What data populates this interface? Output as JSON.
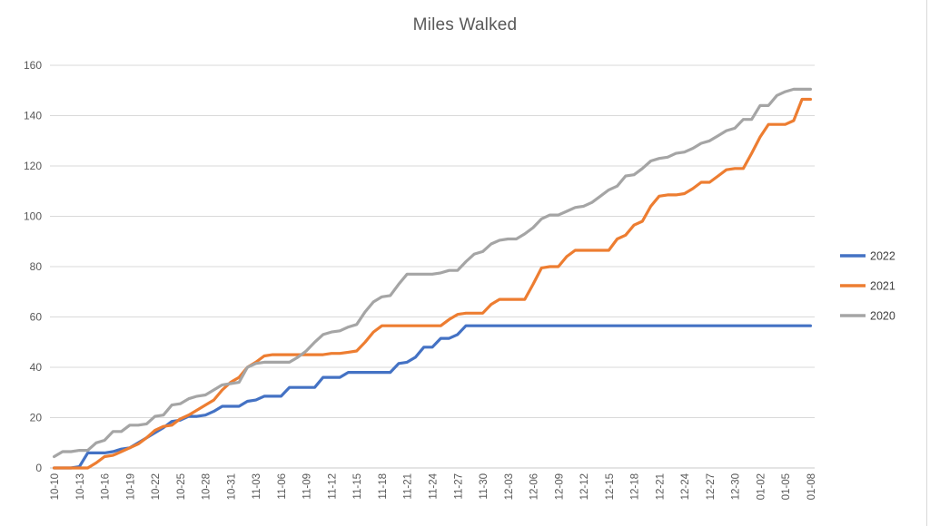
{
  "title": "Miles Walked",
  "colors": {
    "series_2022": "#4472C4",
    "series_2021": "#ED7D31",
    "series_2020": "#A5A5A5",
    "gridline": "#D9D9D9",
    "axis_line": "#C8C8C8",
    "tick_text": "#595959",
    "legend_text": "#404040",
    "frame_border": "#D9D9D9",
    "title_text": "#595959"
  },
  "chart_data": {
    "type": "line",
    "title": "Miles Walked",
    "xlabel": "",
    "ylabel": "",
    "ylim": [
      0,
      160
    ],
    "y_ticks": [
      0,
      20,
      40,
      60,
      80,
      100,
      120,
      140,
      160
    ],
    "grid": "horizontal",
    "legend_position": "right",
    "x_tick_labels": [
      "10-10",
      "10-13",
      "10-16",
      "10-19",
      "10-22",
      "10-25",
      "10-28",
      "10-31",
      "11-03",
      "11-06",
      "11-09",
      "11-12",
      "11-15",
      "11-18",
      "11-21",
      "11-24",
      "11-27",
      "11-30",
      "12-03",
      "12-06",
      "12-09",
      "12-12",
      "12-15",
      "12-18",
      "12-21",
      "12-24",
      "12-27",
      "12-30",
      "01-02",
      "01-05",
      "01-08"
    ],
    "x_daily_dates": [
      "10-10",
      "10-11",
      "10-12",
      "10-13",
      "10-14",
      "10-15",
      "10-16",
      "10-17",
      "10-18",
      "10-19",
      "10-20",
      "10-21",
      "10-22",
      "10-23",
      "10-24",
      "10-25",
      "10-26",
      "10-27",
      "10-28",
      "10-29",
      "10-30",
      "10-31",
      "11-01",
      "11-02",
      "11-03",
      "11-04",
      "11-05",
      "11-06",
      "11-07",
      "11-08",
      "11-09",
      "11-10",
      "11-11",
      "11-12",
      "11-13",
      "11-14",
      "11-15",
      "11-16",
      "11-17",
      "11-18",
      "11-19",
      "11-20",
      "11-21",
      "11-22",
      "11-23",
      "11-24",
      "11-25",
      "11-26",
      "11-27",
      "11-28",
      "11-29",
      "11-30",
      "12-01",
      "12-02",
      "12-03",
      "12-04",
      "12-05",
      "12-06",
      "12-07",
      "12-08",
      "12-09",
      "12-10",
      "12-11",
      "12-12",
      "12-13",
      "12-14",
      "12-15",
      "12-16",
      "12-17",
      "12-18",
      "12-19",
      "12-20",
      "12-21",
      "12-22",
      "12-23",
      "12-24",
      "12-25",
      "12-26",
      "12-27",
      "12-28",
      "12-29",
      "12-30",
      "12-31",
      "01-01",
      "01-02",
      "01-03",
      "01-04",
      "01-05",
      "01-06",
      "01-07",
      "01-08"
    ],
    "values_note": "cumulative miles, estimated from pixels",
    "series": [
      {
        "name": "2022",
        "color": "#4472C4",
        "values": [
          0,
          0,
          0,
          0.5,
          6,
          6,
          6,
          6.5,
          7.5,
          8,
          10,
          12,
          14,
          16,
          18.5,
          19,
          20.5,
          20.5,
          21,
          22.5,
          24.5,
          24.5,
          24.5,
          26.5,
          27,
          28.5,
          28.5,
          28.5,
          32,
          32,
          32,
          32,
          36,
          36,
          36,
          38,
          38,
          38,
          38,
          38,
          38,
          41.5,
          42,
          44,
          48,
          48,
          51.5,
          51.5,
          53,
          56.5,
          56.5,
          56.5,
          56.5,
          56.5,
          56.5,
          56.5,
          56.5,
          56.5,
          56.5,
          56.5,
          56.5,
          56.5,
          56.5,
          56.5,
          56.5,
          56.5,
          56.5,
          56.5,
          56.5,
          56.5,
          56.5,
          56.5,
          56.5,
          56.5,
          56.5,
          56.5,
          56.5,
          56.5,
          56.5,
          56.5,
          56.5,
          56.5,
          56.5,
          56.5,
          56.5,
          56.5,
          56.5,
          56.5,
          56.5,
          56.5,
          56.5
        ]
      },
      {
        "name": "2021",
        "color": "#ED7D31",
        "values": [
          0,
          0,
          0,
          0,
          0,
          2,
          4.5,
          5,
          6.5,
          8,
          9.5,
          12,
          15,
          16.5,
          17,
          19.5,
          21,
          23,
          25,
          27,
          31,
          34,
          36,
          40,
          42,
          44.5,
          45,
          45,
          45,
          45,
          45,
          45,
          45,
          45.5,
          45.5,
          46,
          46.5,
          50,
          54,
          56.5,
          56.5,
          56.5,
          56.5,
          56.5,
          56.5,
          56.5,
          56.5,
          59,
          61,
          61.5,
          61.5,
          61.5,
          65,
          67,
          67,
          67,
          67,
          73,
          79.5,
          80,
          80,
          84,
          86.5,
          86.5,
          86.5,
          86.5,
          86.5,
          91,
          92.5,
          96.5,
          98,
          104,
          108,
          108.5,
          108.5,
          109,
          111,
          113.5,
          113.5,
          116,
          118.5,
          119,
          119,
          125,
          131.5,
          136.5,
          136.5,
          136.5,
          138,
          146.5,
          146.5
        ]
      },
      {
        "name": "2020",
        "color": "#A5A5A5",
        "values": [
          4.5,
          6.5,
          6.5,
          7,
          7,
          10,
          11,
          14.5,
          14.5,
          17,
          17,
          17.5,
          20.5,
          21,
          25,
          25.5,
          27.5,
          28.5,
          29,
          31,
          33,
          33.5,
          34,
          40,
          41.5,
          42,
          42,
          42,
          42,
          44,
          46.5,
          50,
          53,
          54,
          54.5,
          56,
          57,
          62,
          66,
          68,
          68.5,
          73,
          77,
          77,
          77,
          77,
          77.5,
          78.5,
          78.5,
          82,
          85,
          86,
          89,
          90.5,
          91,
          91,
          93,
          95.5,
          99,
          100.5,
          100.5,
          102,
          103.5,
          104,
          105.5,
          108,
          110.5,
          112,
          116,
          116.5,
          119,
          122,
          123,
          123.5,
          125,
          125.5,
          127,
          129,
          130,
          132,
          134,
          135,
          138.5,
          138.5,
          144,
          144,
          148,
          149.5,
          150.5,
          150.5,
          150.5
        ]
      }
    ]
  },
  "legend": {
    "items": [
      {
        "label": "2022"
      },
      {
        "label": "2021"
      },
      {
        "label": "2020"
      }
    ]
  }
}
